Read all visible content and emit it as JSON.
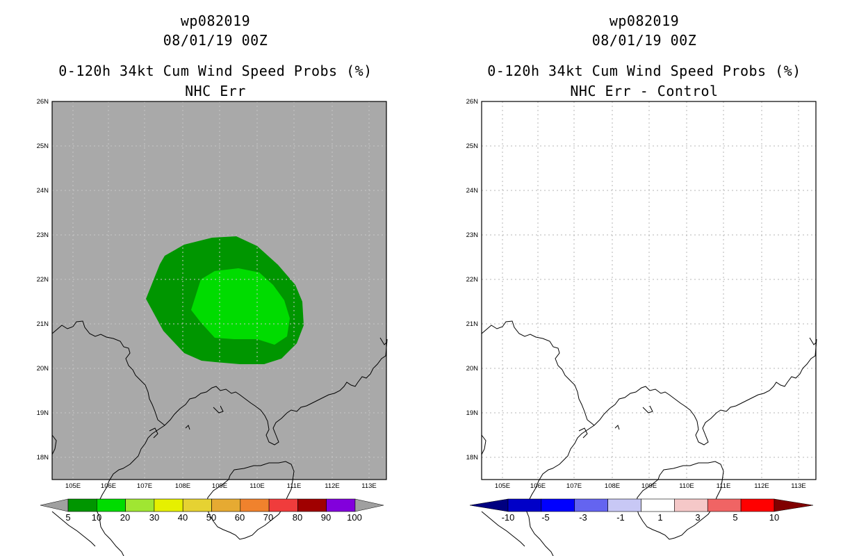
{
  "left_panel": {
    "title_storm": "wp082019",
    "title_time": "08/01/19 00Z",
    "title_product": "0-120h 34kt Cum Wind Speed Probs (%)",
    "title_subtitle": "NHC Err",
    "lat_labels": [
      "26N",
      "25N",
      "24N",
      "23N",
      "22N",
      "21N",
      "20N",
      "19N",
      "18N"
    ],
    "lon_labels": [
      "105E",
      "106E",
      "107E",
      "108E",
      "109E",
      "110E",
      "111E",
      "112E",
      "113E"
    ],
    "colorbar_labels": [
      "5",
      "10",
      "20",
      "30",
      "40",
      "50",
      "60",
      "70",
      "80",
      "90",
      "100"
    ],
    "colorbar_colors": [
      "#009600",
      "#00dc00",
      "#a0e632",
      "#e6f000",
      "#e6d232",
      "#e6aa32",
      "#f0822d",
      "#f03c3c",
      "#a00000",
      "#8200dc"
    ],
    "background_color": "#a9a9a9",
    "contours": [
      {
        "level": 5,
        "color": "#009600"
      },
      {
        "level": 10,
        "color": "#00dc00"
      }
    ]
  },
  "right_panel": {
    "title_storm": "wp082019",
    "title_time": "08/01/19 00Z",
    "title_product": "0-120h 34kt Cum Wind Speed Probs (%)",
    "title_subtitle": "NHC Err - Control",
    "lat_labels": [
      "26N",
      "25N",
      "24N",
      "23N",
      "22N",
      "21N",
      "20N",
      "19N",
      "18N"
    ],
    "lon_labels": [
      "105E",
      "106E",
      "107E",
      "108E",
      "109E",
      "110E",
      "111E",
      "112E",
      "113E"
    ],
    "colorbar_labels": [
      "-10",
      "-5",
      "-3",
      "-1",
      "1",
      "3",
      "5",
      "10"
    ],
    "colorbar_colors": [
      "#0000c8",
      "#0000ff",
      "#6464f0",
      "#c8c8f5",
      "#ffffff",
      "#f5c8c8",
      "#f06464",
      "#ff0000"
    ],
    "colorbar_end_low": "#000080",
    "colorbar_end_high": "#800000"
  }
}
